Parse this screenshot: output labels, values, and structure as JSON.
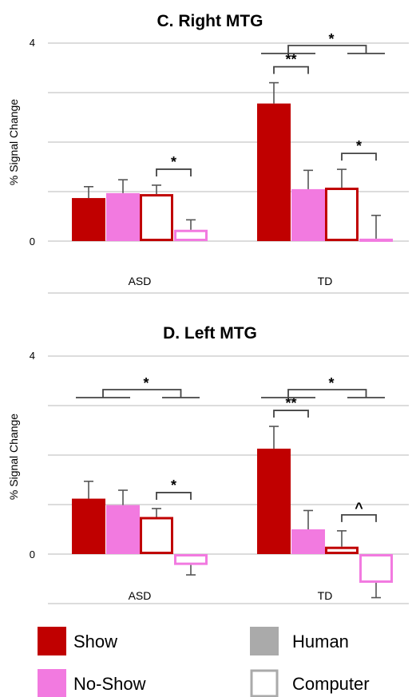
{
  "chart_data": [
    {
      "type": "bar",
      "title": "C. Right MTG",
      "ylabel": "% Signal Change",
      "ylim": [
        0,
        4
      ],
      "yticks": [
        "4",
        "0"
      ],
      "categories": [
        "ASD",
        "TD"
      ],
      "series": [
        {
          "name": "Show Human",
          "values": [
            0.87,
            2.78
          ],
          "errors": [
            0.23,
            0.42
          ]
        },
        {
          "name": "No-Show Human",
          "values": [
            0.97,
            1.05
          ],
          "errors": [
            0.27,
            0.38
          ]
        },
        {
          "name": "Show Computer",
          "values": [
            0.95,
            1.08
          ],
          "errors": [
            0.18,
            0.37
          ]
        },
        {
          "name": "No-Show Computer",
          "values": [
            0.23,
            0.05
          ],
          "errors": [
            0.2,
            0.47
          ]
        }
      ],
      "significance": [
        {
          "label": "*",
          "group": "ASD",
          "between": [
            "Show Computer",
            "No-Show Computer"
          ]
        },
        {
          "label": "**",
          "group": "TD",
          "between": [
            "Show Human",
            "No-Show Human"
          ]
        },
        {
          "label": "*",
          "group": "TD",
          "between": [
            "Show Computer",
            "No-Show Computer"
          ]
        },
        {
          "label": "*",
          "group": "TD",
          "between": [
            "Human",
            "Computer"
          ]
        }
      ]
    },
    {
      "type": "bar",
      "title": "D. Left MTG",
      "ylabel": "% Signal Change",
      "ylim": [
        -0.6,
        4
      ],
      "yticks": [
        "4",
        "0"
      ],
      "categories": [
        "ASD",
        "TD"
      ],
      "series": [
        {
          "name": "Show Human",
          "values": [
            1.12,
            2.13
          ],
          "errors": [
            0.35,
            0.45
          ]
        },
        {
          "name": "No-Show Human",
          "values": [
            0.99,
            0.5
          ],
          "errors": [
            0.3,
            0.38
          ]
        },
        {
          "name": "Show Computer",
          "values": [
            0.75,
            0.15
          ],
          "errors": [
            0.17,
            0.32
          ]
        },
        {
          "name": "No-Show Computer",
          "values": [
            -0.22,
            -0.58
          ],
          "errors": [
            0.2,
            0.3
          ]
        }
      ],
      "significance": [
        {
          "label": "*",
          "group": "ASD",
          "between": [
            "Human",
            "Computer"
          ]
        },
        {
          "label": "*",
          "group": "ASD",
          "between": [
            "Show Computer",
            "No-Show Computer"
          ]
        },
        {
          "label": "**",
          "group": "TD",
          "between": [
            "Show Human",
            "No-Show Human"
          ]
        },
        {
          "label": "^",
          "group": "TD",
          "between": [
            "Show Computer",
            "No-Show Computer"
          ]
        },
        {
          "label": "*",
          "group": "TD",
          "between": [
            "Human",
            "Computer"
          ]
        }
      ]
    }
  ],
  "legend": {
    "items": [
      {
        "label": "Show",
        "color": "#c00000",
        "style": "filled"
      },
      {
        "label": "No-Show",
        "color": "#f27ae0",
        "style": "filled"
      },
      {
        "label": "Human",
        "color": "#aaaaaa",
        "style": "filled"
      },
      {
        "label": "Computer",
        "color": "#aaaaaa",
        "style": "outline"
      }
    ]
  },
  "colors": {
    "show": "#c00000",
    "noshow": "#f27ae0",
    "grid": "#c8c8c8"
  }
}
